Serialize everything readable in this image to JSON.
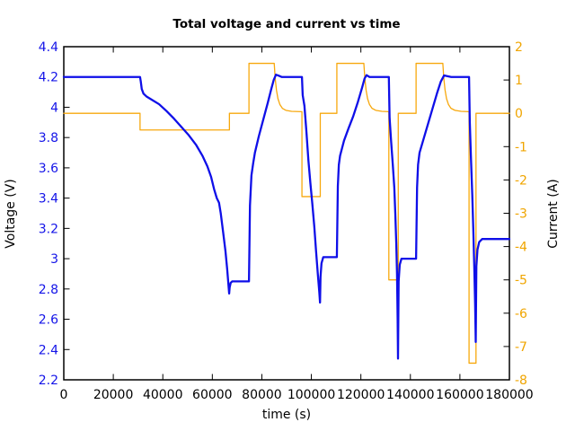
{
  "chart_data": {
    "type": "line",
    "title": "Total voltage and current vs time",
    "xlabel": "time (s)",
    "grid": false,
    "legend": "none",
    "x_range": [
      0,
      180000
    ],
    "x_tick_values": [
      0,
      20000,
      40000,
      60000,
      80000,
      100000,
      120000,
      140000,
      160000,
      180000
    ],
    "x_tick_labels": [
      "0",
      "20000",
      "40000",
      "60000",
      "80000",
      "100000",
      "120000",
      "140000",
      "160000",
      "180000"
    ],
    "axes": {
      "left": {
        "label": "Voltage (V)",
        "range": [
          2.2,
          4.4
        ],
        "tick_values": [
          2.2,
          2.4,
          2.6,
          2.8,
          3.0,
          3.2,
          3.4,
          3.6,
          3.8,
          4.0,
          4.2,
          4.4
        ],
        "tick_labels": [
          "2.2",
          "2.4",
          "2.6",
          "2.8",
          "3",
          "3.2",
          "3.4",
          "3.6",
          "3.8",
          "4",
          "4.2",
          "4.4"
        ],
        "color": "#1414e8"
      },
      "right": {
        "label": "Current (A)",
        "range": [
          -8,
          2
        ],
        "tick_values": [
          2,
          1,
          0,
          -1,
          -2,
          -3,
          -4,
          -5,
          -6,
          -7,
          -8
        ],
        "tick_labels": [
          "2",
          "1",
          "0",
          "-1",
          "-2",
          "-3",
          "-4",
          "-5",
          "-6",
          "-7",
          "-8"
        ],
        "color": "#f0a500"
      }
    },
    "series": [
      {
        "name": "current",
        "axis": "right",
        "color": "#f7a80d",
        "width": 1.3,
        "points": [
          [
            0,
            0
          ],
          [
            30800,
            0
          ],
          [
            30800,
            -0.5
          ],
          [
            66900,
            -0.5
          ],
          [
            66900,
            0
          ],
          [
            74800,
            0
          ],
          [
            74800,
            1.5
          ],
          [
            85000,
            1.5
          ],
          [
            85400,
            1.05
          ],
          [
            85900,
            0.7
          ],
          [
            86500,
            0.44
          ],
          [
            87300,
            0.26
          ],
          [
            88300,
            0.15
          ],
          [
            89700,
            0.09
          ],
          [
            92000,
            0.06
          ],
          [
            96200,
            0.05
          ],
          [
            96200,
            -2.5
          ],
          [
            103600,
            -2.5
          ],
          [
            103600,
            0
          ],
          [
            110300,
            0
          ],
          [
            110300,
            1.5
          ],
          [
            121200,
            1.5
          ],
          [
            121600,
            1.05
          ],
          [
            122100,
            0.7
          ],
          [
            122700,
            0.44
          ],
          [
            123500,
            0.26
          ],
          [
            124500,
            0.15
          ],
          [
            126000,
            0.09
          ],
          [
            128500,
            0.06
          ],
          [
            131300,
            0.05
          ],
          [
            131300,
            -5
          ],
          [
            135100,
            -5
          ],
          [
            135100,
            0
          ],
          [
            142300,
            0
          ],
          [
            142300,
            1.5
          ],
          [
            153100,
            1.5
          ],
          [
            153500,
            1.05
          ],
          [
            154000,
            0.7
          ],
          [
            154600,
            0.44
          ],
          [
            155400,
            0.26
          ],
          [
            156400,
            0.15
          ],
          [
            158000,
            0.09
          ],
          [
            160500,
            0.06
          ],
          [
            163700,
            0.05
          ],
          [
            163700,
            -7.5
          ],
          [
            166500,
            -7.5
          ],
          [
            166500,
            0
          ],
          [
            180000,
            0
          ]
        ]
      },
      {
        "name": "voltage",
        "axis": "left",
        "color": "#0f0fe8",
        "width": 2.3,
        "points": [
          [
            0,
            4.2
          ],
          [
            30800,
            4.2
          ],
          [
            31100,
            4.17
          ],
          [
            31500,
            4.12
          ],
          [
            32200,
            4.09
          ],
          [
            33500,
            4.07
          ],
          [
            35500,
            4.05
          ],
          [
            38500,
            4.02
          ],
          [
            41500,
            3.975
          ],
          [
            44500,
            3.925
          ],
          [
            47500,
            3.87
          ],
          [
            50500,
            3.815
          ],
          [
            53500,
            3.75
          ],
          [
            56000,
            3.68
          ],
          [
            58000,
            3.61
          ],
          [
            59500,
            3.54
          ],
          [
            60700,
            3.46
          ],
          [
            61800,
            3.4
          ],
          [
            62700,
            3.37
          ],
          [
            63400,
            3.3
          ],
          [
            64400,
            3.17
          ],
          [
            65300,
            3.05
          ],
          [
            66000,
            2.93
          ],
          [
            66500,
            2.83
          ],
          [
            66800,
            2.77
          ],
          [
            67000,
            2.81
          ],
          [
            67400,
            2.84
          ],
          [
            68000,
            2.85
          ],
          [
            74800,
            2.85
          ],
          [
            75200,
            3.35
          ],
          [
            75800,
            3.55
          ],
          [
            76500,
            3.63
          ],
          [
            77200,
            3.7
          ],
          [
            78800,
            3.81
          ],
          [
            80600,
            3.92
          ],
          [
            82400,
            4.03
          ],
          [
            83800,
            4.12
          ],
          [
            84800,
            4.18
          ],
          [
            85700,
            4.215
          ],
          [
            86600,
            4.21
          ],
          [
            88000,
            4.2
          ],
          [
            96200,
            4.2
          ],
          [
            96500,
            4.08
          ],
          [
            97200,
            4.01
          ],
          [
            98000,
            3.84
          ],
          [
            98800,
            3.65
          ],
          [
            99600,
            3.5
          ],
          [
            100400,
            3.36
          ],
          [
            101200,
            3.21
          ],
          [
            101900,
            3.05
          ],
          [
            102600,
            2.9
          ],
          [
            103200,
            2.78
          ],
          [
            103500,
            2.71
          ],
          [
            103700,
            2.88
          ],
          [
            104100,
            2.97
          ],
          [
            104800,
            3.01
          ],
          [
            110300,
            3.01
          ],
          [
            110700,
            3.48
          ],
          [
            111100,
            3.62
          ],
          [
            111600,
            3.68
          ],
          [
            113200,
            3.78
          ],
          [
            115000,
            3.86
          ],
          [
            116900,
            3.94
          ],
          [
            118700,
            4.03
          ],
          [
            120500,
            4.13
          ],
          [
            121500,
            4.19
          ],
          [
            122300,
            4.212
          ],
          [
            123500,
            4.2
          ],
          [
            131300,
            4.2
          ],
          [
            131600,
            3.93
          ],
          [
            132200,
            3.78
          ],
          [
            132900,
            3.62
          ],
          [
            133500,
            3.47
          ],
          [
            133900,
            3.3
          ],
          [
            134300,
            3.1
          ],
          [
            134600,
            2.9
          ],
          [
            134850,
            2.6
          ],
          [
            135000,
            2.34
          ],
          [
            135250,
            2.85
          ],
          [
            135700,
            2.96
          ],
          [
            136400,
            3.0
          ],
          [
            142300,
            3.0
          ],
          [
            142700,
            3.47
          ],
          [
            143100,
            3.62
          ],
          [
            143700,
            3.7
          ],
          [
            145500,
            3.8
          ],
          [
            147300,
            3.9
          ],
          [
            149100,
            4.0
          ],
          [
            150900,
            4.1
          ],
          [
            152300,
            4.17
          ],
          [
            153600,
            4.21
          ],
          [
            155000,
            4.205
          ],
          [
            156500,
            4.2
          ],
          [
            163700,
            4.2
          ],
          [
            164000,
            3.9
          ],
          [
            164500,
            3.65
          ],
          [
            165000,
            3.42
          ],
          [
            165400,
            3.2
          ],
          [
            165800,
            2.95
          ],
          [
            166150,
            2.7
          ],
          [
            166400,
            2.45
          ],
          [
            166650,
            2.95
          ],
          [
            167100,
            3.06
          ],
          [
            167800,
            3.11
          ],
          [
            169000,
            3.13
          ],
          [
            180000,
            3.13
          ]
        ]
      }
    ]
  }
}
